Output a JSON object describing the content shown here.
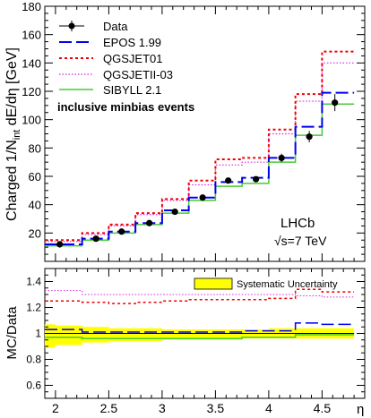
{
  "chart_data": [
    {
      "type": "step-histogram",
      "ylabel": "Charged 1/N_int dE/dη [GeV]",
      "xlabel": "η",
      "xlim": [
        1.9,
        4.9
      ],
      "ylim": [
        0,
        180
      ],
      "y_ticks": [
        20,
        40,
        60,
        80,
        100,
        120,
        140,
        160,
        180
      ],
      "bin_edges": [
        1.9,
        2.25,
        2.5,
        2.75,
        3.0,
        3.25,
        3.5,
        3.75,
        4.0,
        4.25,
        4.5,
        4.8
      ],
      "data": {
        "name": "Data",
        "x": [
          2.04,
          2.38,
          2.62,
          2.88,
          3.12,
          3.38,
          3.62,
          3.88,
          4.12,
          4.38,
          4.62
        ],
        "y": [
          12,
          16,
          21,
          27,
          35,
          45,
          57,
          58,
          73,
          88,
          112
        ],
        "yerr": [
          1,
          1,
          1,
          1,
          1,
          1,
          1,
          2,
          3,
          4,
          6
        ]
      },
      "series": [
        {
          "name": "EPOS 1.99",
          "values": [
            12,
            16,
            21,
            27,
            36,
            45,
            56,
            59,
            73,
            95,
            119
          ],
          "color": "#0000ee",
          "dash": "14,5",
          "width": 2
        },
        {
          "name": "QGSJET01",
          "values": [
            15,
            20,
            26,
            34,
            44,
            57,
            72,
            73,
            93,
            118,
            148
          ],
          "color": "#ee0000",
          "dash": "3,3",
          "width": 2
        },
        {
          "name": "QGSJETII-03",
          "values": [
            14,
            19,
            25,
            33,
            43,
            54,
            68,
            70,
            90,
            113,
            140
          ],
          "color": "#dd22dd",
          "dash": "1.5,2",
          "width": 1.2
        },
        {
          "name": "SIBYLL 2.1",
          "values": [
            11,
            15,
            20,
            26,
            34,
            43,
            53,
            55,
            70,
            89,
            111
          ],
          "color": "#44cc33",
          "dash": "",
          "width": 1.5
        }
      ],
      "annotation": "inclusive minbias events",
      "experiment_label": "LHCb",
      "energy_label": "√s=7 TeV"
    },
    {
      "type": "ratio-step",
      "ylabel": "MC/Data",
      "xlabel": "η",
      "xlim": [
        1.9,
        4.9
      ],
      "ylim": [
        0.5,
        1.5
      ],
      "y_ticks": [
        0.6,
        0.8,
        1,
        1.2,
        1.4
      ],
      "y_tick_labels": [
        "0.6",
        "0.8",
        "1",
        "1.2",
        "1.4"
      ],
      "x_ticks": [
        2,
        2.5,
        3,
        3.5,
        4,
        4.5
      ],
      "x_tick_labels": [
        "2",
        "2.5",
        "3",
        "3.5",
        "4",
        "4.5"
      ],
      "legend": "Systematic Uncertainty",
      "band": {
        "edges": [
          1.9,
          2.0,
          2.25,
          2.5,
          3.0,
          3.5,
          3.75,
          4.0,
          4.3,
          4.8
        ],
        "lo": [
          0.89,
          0.91,
          0.93,
          0.94,
          0.95,
          0.95,
          0.96,
          0.96,
          0.96
        ],
        "hi": [
          1.07,
          1.06,
          1.05,
          1.04,
          1.03,
          1.03,
          1.03,
          1.04,
          1.04
        ]
      },
      "unity_line": 1,
      "series": [
        {
          "name": "QGSJET01",
          "values": [
            1.25,
            1.24,
            1.23,
            1.24,
            1.25,
            1.26,
            1.26,
            1.26,
            1.27,
            1.34,
            1.32
          ],
          "color": "#ee0000",
          "dash": "3,3",
          "width": 1.5
        },
        {
          "name": "QGSJETII-03",
          "values": [
            1.33,
            1.3,
            1.3,
            1.3,
            1.3,
            1.3,
            1.3,
            1.3,
            1.3,
            1.29,
            1.28
          ],
          "color": "#dd22dd",
          "dash": "1.5,2",
          "width": 1
        },
        {
          "name": "EPOS 1.99",
          "values": [
            1.03,
            1.01,
            1.01,
            1.01,
            1.01,
            1.01,
            1.01,
            1.02,
            1.02,
            1.08,
            1.07
          ],
          "color": "#0000ee",
          "dash": "14,5",
          "width": 1.5
        },
        {
          "name": "SIBYLL 2.1",
          "values": [
            0.97,
            0.96,
            0.96,
            0.96,
            0.96,
            0.96,
            0.96,
            0.97,
            0.97,
            0.99,
            0.99
          ],
          "color": "#44cc33",
          "dash": "",
          "width": 1.5
        },
        {
          "name": "unity",
          "values": [
            1.0,
            1.0,
            1.0,
            1.0,
            1.0,
            1.0,
            1.0,
            1.0,
            1.0,
            1.0,
            1.0
          ],
          "color": "#000000",
          "dash": "",
          "width": 1
        }
      ]
    }
  ]
}
